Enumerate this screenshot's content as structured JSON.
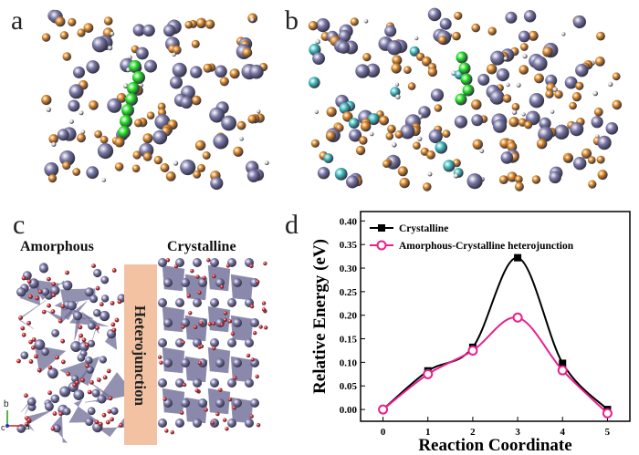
{
  "panels": {
    "a": {
      "label": "a"
    },
    "b": {
      "label": "b"
    },
    "c": {
      "label": "c",
      "amorphous_label": "Amorphous",
      "crystalline_label": "Crystalline",
      "interface_label": "Heterojunction",
      "axis_b": "b",
      "axis_c": "c",
      "axis_a": "a"
    },
    "d": {
      "label": "d"
    }
  },
  "atom_colors": {
    "large": "#7a78a8",
    "orange": "#d9821c",
    "green": "#22dd22",
    "cyan": "#3dbcbc",
    "white": "#dddddd",
    "red": "#e02020"
  },
  "chart_data": {
    "type": "line",
    "xlabel": "Reaction Coordinate",
    "ylabel": "Relative Energy (eV)",
    "xlim": [
      -0.5,
      5.5
    ],
    "ylim": [
      -0.025,
      0.42
    ],
    "xticks": [
      0,
      1,
      2,
      3,
      4,
      5
    ],
    "yticks": [
      0.0,
      0.05,
      0.1,
      0.15,
      0.2,
      0.25,
      0.3,
      0.35,
      0.4
    ],
    "legend_position": "top-left",
    "x": [
      0,
      1,
      2,
      3,
      4,
      5
    ],
    "series": [
      {
        "name": "Crystalline",
        "color": "#000000",
        "marker": "square",
        "values": [
          0.0,
          0.082,
          0.132,
          0.322,
          0.098,
          0.0
        ]
      },
      {
        "name": "Amorphous-Crystalline heterojunction",
        "color": "#e8208c",
        "marker": "circle",
        "values": [
          0.0,
          0.075,
          0.125,
          0.195,
          0.083,
          -0.008
        ]
      }
    ]
  }
}
